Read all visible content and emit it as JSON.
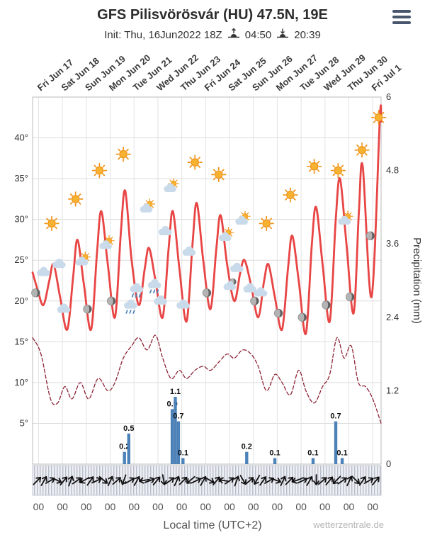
{
  "header": {
    "title": "GFS Pilisvörösvár (HU) 47.5N, 19E",
    "init": "Init: Thu, 16Jun2022 18Z",
    "sunrise_time": "04:50",
    "sunset_time": "20:39"
  },
  "footer": {
    "credit": "wetterzentrale.de"
  },
  "chart_data": {
    "type": "line",
    "title": "GFS Pilisvörösvár (HU) 47.5N, 19E",
    "xlabel": "Local time (UTC+2)",
    "x_unit_days_from": "Fri Jun 17 00:00 local",
    "x_range": [
      -0.25,
      14.35
    ],
    "grid": true,
    "day_labels": [
      "Fri Jun 17",
      "Sat Jun 18",
      "Sun Jun 19",
      "Mon Jun 20",
      "Tue Jun 21",
      "Wed Jun 22",
      "Thu Jun 23",
      "Fri Jun 24",
      "Sat Jun 25",
      "Sun Jun 26",
      "Mon Jun 27",
      "Tue Jun 28",
      "Wed Jun 29",
      "Thu Jun 30",
      "Fri Jul 1"
    ],
    "hour_labels": [
      "00",
      "00",
      "00",
      "00",
      "00",
      "00",
      "00",
      "00",
      "00",
      "00",
      "00",
      "00",
      "00",
      "00",
      "00"
    ],
    "temp_axis": {
      "ticks": [
        5,
        10,
        15,
        20,
        25,
        30,
        35,
        40
      ],
      "suffix": "°",
      "range": [
        0,
        45
      ]
    },
    "precip_axis": {
      "label": "Precipitation (mm)",
      "ticks": [
        0,
        1.2,
        2.4,
        3.6,
        4.8,
        6
      ],
      "tick_labels": [
        "0",
        "1.2",
        "2.4",
        "3.6",
        "4.8",
        "6"
      ],
      "range": [
        0,
        6
      ]
    },
    "series": [
      {
        "name": "temperature_2m_red_solid",
        "color": "#e84545",
        "style": "solid",
        "width": 2.8,
        "points": [
          [
            -0.25,
            23.5
          ],
          [
            -0.05,
            21.5
          ],
          [
            0.2,
            19.5
          ],
          [
            0.45,
            22.5
          ],
          [
            0.63,
            24.5
          ],
          [
            0.9,
            20.5
          ],
          [
            1.2,
            16.5
          ],
          [
            1.45,
            23
          ],
          [
            1.63,
            27.5
          ],
          [
            1.9,
            22
          ],
          [
            2.2,
            16.5
          ],
          [
            2.45,
            26
          ],
          [
            2.63,
            31
          ],
          [
            2.9,
            24.5
          ],
          [
            3.2,
            18
          ],
          [
            3.45,
            28.5
          ],
          [
            3.63,
            33.5
          ],
          [
            3.9,
            25
          ],
          [
            4.2,
            19.5
          ],
          [
            4.45,
            24
          ],
          [
            4.63,
            26.5
          ],
          [
            4.9,
            22.5
          ],
          [
            5.2,
            18
          ],
          [
            5.45,
            26.5
          ],
          [
            5.63,
            31
          ],
          [
            5.9,
            24
          ],
          [
            6.2,
            17.5
          ],
          [
            6.45,
            27
          ],
          [
            6.63,
            32
          ],
          [
            6.9,
            25
          ],
          [
            7.2,
            19
          ],
          [
            7.45,
            26.5
          ],
          [
            7.63,
            30.5
          ],
          [
            7.9,
            24.5
          ],
          [
            8.2,
            20
          ],
          [
            8.45,
            23.5
          ],
          [
            8.63,
            25
          ],
          [
            8.9,
            22
          ],
          [
            9.2,
            18
          ],
          [
            9.45,
            22.5
          ],
          [
            9.63,
            24.5
          ],
          [
            9.9,
            20.5
          ],
          [
            10.2,
            16.5
          ],
          [
            10.45,
            24
          ],
          [
            10.63,
            28
          ],
          [
            10.9,
            22.5
          ],
          [
            11.2,
            16
          ],
          [
            11.45,
            27
          ],
          [
            11.63,
            31.5
          ],
          [
            11.9,
            24.5
          ],
          [
            12.2,
            17.5
          ],
          [
            12.45,
            30
          ],
          [
            12.63,
            35
          ],
          [
            12.9,
            27
          ],
          [
            13.2,
            18.5
          ],
          [
            13.42,
            31
          ],
          [
            13.58,
            36.5
          ],
          [
            13.95,
            20.5
          ],
          [
            14.3,
            42.5
          ],
          [
            14.35,
            42
          ]
        ]
      },
      {
        "name": "dashed_maroon_line",
        "color": "#8b2434",
        "style": "dashed",
        "width": 1.3,
        "points": [
          [
            -0.25,
            15.5
          ],
          [
            0.1,
            13.5
          ],
          [
            0.5,
            8
          ],
          [
            0.8,
            7.5
          ],
          [
            1.1,
            9.5
          ],
          [
            1.4,
            8
          ],
          [
            1.75,
            10
          ],
          [
            2.1,
            8
          ],
          [
            2.5,
            10.5
          ],
          [
            2.9,
            9
          ],
          [
            3.2,
            10
          ],
          [
            3.55,
            13
          ],
          [
            3.9,
            14.5
          ],
          [
            4.2,
            15.5
          ],
          [
            4.55,
            14
          ],
          [
            4.9,
            15.8
          ],
          [
            5.2,
            13
          ],
          [
            5.55,
            10.5
          ],
          [
            5.9,
            11.5
          ],
          [
            6.2,
            10.5
          ],
          [
            6.55,
            11.5
          ],
          [
            6.9,
            12
          ],
          [
            7.2,
            11.5
          ],
          [
            7.55,
            12.5
          ],
          [
            7.9,
            13.5
          ],
          [
            8.2,
            13
          ],
          [
            8.55,
            14
          ],
          [
            8.9,
            13.5
          ],
          [
            9.2,
            12
          ],
          [
            9.55,
            9
          ],
          [
            9.9,
            11
          ],
          [
            10.2,
            10
          ],
          [
            10.55,
            8.5
          ],
          [
            10.9,
            11.5
          ],
          [
            11.2,
            9
          ],
          [
            11.55,
            7.5
          ],
          [
            11.9,
            9.5
          ],
          [
            12.2,
            11
          ],
          [
            12.5,
            15.5
          ],
          [
            12.8,
            13
          ],
          [
            13.1,
            14.5
          ],
          [
            13.4,
            10
          ],
          [
            13.7,
            9.5
          ],
          [
            14.0,
            8
          ],
          [
            14.35,
            5
          ]
        ]
      }
    ],
    "precipitation_mm": {
      "color": "#4d82b8",
      "bars": [
        [
          3.6,
          0.2
        ],
        [
          3.78,
          0.5
        ],
        [
          5.6,
          0.9
        ],
        [
          5.73,
          1.1
        ],
        [
          5.86,
          0.7
        ],
        [
          6.05,
          0.1
        ],
        [
          8.72,
          0.2
        ],
        [
          9.9,
          0.1
        ],
        [
          11.5,
          0.1
        ],
        [
          12.45,
          0.7
        ],
        [
          12.72,
          0.1
        ]
      ]
    },
    "weather_icons": [
      [
        -0.12,
        21,
        "moon"
      ],
      [
        0.2,
        23.5,
        "cloud"
      ],
      [
        0.55,
        29.5,
        "sun"
      ],
      [
        0.85,
        24.5,
        "cloud"
      ],
      [
        1.05,
        19,
        "cloud"
      ],
      [
        1.55,
        32.5,
        "sun"
      ],
      [
        1.85,
        25,
        "suncloud"
      ],
      [
        2.05,
        19,
        "moon"
      ],
      [
        2.55,
        36,
        "sun"
      ],
      [
        2.85,
        27,
        "suncloud"
      ],
      [
        3.05,
        20,
        "moon"
      ],
      [
        3.55,
        38,
        "sun"
      ],
      [
        3.85,
        19.5,
        "raincloud"
      ],
      [
        4.1,
        21.5,
        "raincloud"
      ],
      [
        4.55,
        31.5,
        "suncloud"
      ],
      [
        4.85,
        22,
        "raincloud"
      ],
      [
        5.1,
        20,
        "cloud"
      ],
      [
        5.3,
        28.5,
        "cloud"
      ],
      [
        5.55,
        34,
        "suncloud"
      ],
      [
        6.05,
        19.5,
        "cloud"
      ],
      [
        6.3,
        26,
        "cloud"
      ],
      [
        6.55,
        37,
        "sun"
      ],
      [
        7.05,
        21,
        "moon"
      ],
      [
        7.55,
        35.5,
        "sun"
      ],
      [
        7.85,
        28,
        "suncloud"
      ],
      [
        8.05,
        22,
        "mooncloud"
      ],
      [
        8.3,
        24,
        "cloud"
      ],
      [
        8.55,
        30,
        "suncloud"
      ],
      [
        8.85,
        21.5,
        "cloud"
      ],
      [
        9.05,
        20,
        "moon"
      ],
      [
        9.3,
        21,
        "cloud"
      ],
      [
        9.55,
        29.5,
        "sun"
      ],
      [
        10.05,
        18.5,
        "moon"
      ],
      [
        10.55,
        33,
        "sun"
      ],
      [
        11.05,
        18,
        "moon"
      ],
      [
        11.55,
        36.5,
        "sun"
      ],
      [
        12.05,
        19.5,
        "moon"
      ],
      [
        12.55,
        36,
        "sun"
      ],
      [
        12.85,
        30,
        "suncloud"
      ],
      [
        13.05,
        20.5,
        "moon"
      ],
      [
        13.55,
        38.5,
        "sun"
      ],
      [
        13.9,
        28,
        "moon"
      ],
      [
        14.25,
        42.5,
        "sun"
      ]
    ],
    "wind_arrows_deg": [
      -45,
      -60,
      -30,
      25,
      -50,
      -70,
      -35,
      150,
      -55,
      -25,
      40,
      -65,
      -40,
      110,
      -30,
      -60,
      170,
      -20,
      -50,
      80,
      -35,
      -65,
      -45,
      140,
      -25,
      -60,
      30,
      -50,
      190,
      -35,
      -70,
      60,
      -40,
      120,
      -55,
      -30,
      20,
      -65,
      -45,
      160,
      -25,
      -60,
      90,
      -40,
      -50,
      135,
      -35,
      -65,
      45,
      -55,
      -30,
      -50
    ]
  }
}
